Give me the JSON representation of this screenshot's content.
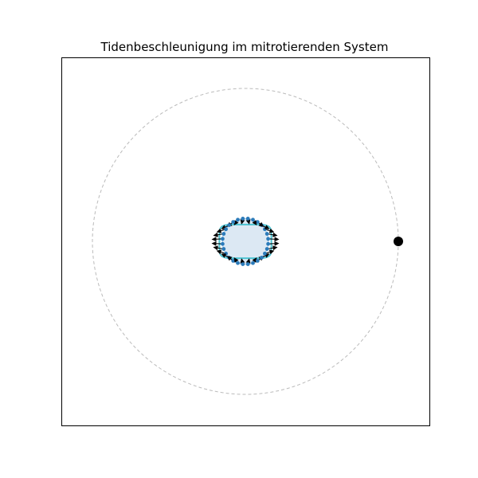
{
  "figure": {
    "title": "Tidenbeschleunigung im mitrotierenden System"
  },
  "colors": {
    "orbit": "#bbbbbb",
    "body_fill": "#dce8f3",
    "body_stroke": "#9ec4e4",
    "bulge": "#4cc3d2",
    "points": "#2b7bba",
    "arrows": "#000000",
    "moon": "#000000",
    "frame": "#000000"
  },
  "diagram": {
    "point_count": 28,
    "orbit_radius": 2.0,
    "body_radius": 0.3,
    "bulge": {
      "a": 0.34,
      "b": 0.22
    },
    "moon": {
      "x": 2.0,
      "y": 0.0
    }
  }
}
